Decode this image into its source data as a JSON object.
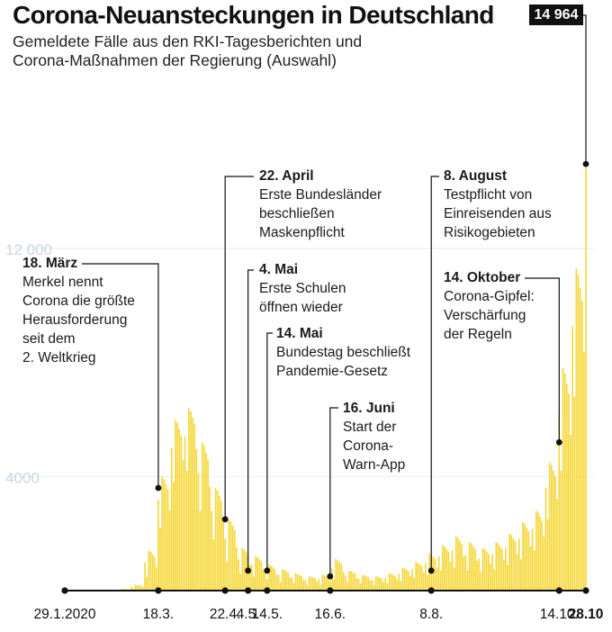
{
  "title": "Corona-Neuansteckungen in Deutschland",
  "subtitle_lines": [
    "Gemeldete Fälle aus den RKI-Tagesberichten und",
    "Corona-Maßnahmen der Regierung (Auswahl)"
  ],
  "peak_label": "14 964",
  "colors": {
    "bars": "#f5d73a",
    "gridline": "#e6eef3",
    "ytick_text": "#c7d6e0",
    "markers": "#111111"
  },
  "annotations": [
    {
      "date": "18. März",
      "text": "Merkel nennt\nCorona die größte\nHerausforderung\nseit dem\n2. Weltkrieg"
    },
    {
      "date": "22. April",
      "text": "Erste Bundesländer\nbeschließen\nMaskenpflicht"
    },
    {
      "date": "4. Mai",
      "text": "Erste Schulen\nöffnen wieder"
    },
    {
      "date": "14. Mai",
      "text": "Bundestag beschließt\nPandemie-Gesetz"
    },
    {
      "date": "16. Juni",
      "text": "Start der\nCorona-\nWarn-App"
    },
    {
      "date": "8. August",
      "text": "Testpflicht von\nEinreisenden aus\nRisikogebieten"
    },
    {
      "date": "14. Oktober",
      "text": "Corona-Gipfel:\nVerschärfung\nder Regeln"
    }
  ],
  "chart_data": {
    "type": "bar",
    "title": "Corona-Neuansteckungen in Deutschland",
    "subtitle": "Gemeldete Fälle aus den RKI-Tagesberichten und Corona-Maßnahmen der Regierung (Auswahl)",
    "x_range": [
      "2020-01-29",
      "2020-10-28"
    ],
    "ylim": [
      0,
      15000
    ],
    "y_ticks": [
      {
        "value": 4000,
        "label": "4000"
      },
      {
        "value": 12000,
        "label": "12 000"
      }
    ],
    "x_ticks": [
      {
        "date": "2020-01-29",
        "label": "29.1.2020"
      },
      {
        "date": "2020-03-18",
        "label": "18.3."
      },
      {
        "date": "2020-04-22",
        "label": "22.4."
      },
      {
        "date": "2020-05-04",
        "label": "4.5."
      },
      {
        "date": "2020-05-14",
        "label": "14.5."
      },
      {
        "date": "2020-06-16",
        "label": "16.6."
      },
      {
        "date": "2020-08-08",
        "label": "8.8."
      },
      {
        "date": "2020-10-14",
        "label": "14.10."
      },
      {
        "date": "2020-10-28",
        "label": "28.10"
      }
    ],
    "events": [
      {
        "date": "2020-03-18",
        "value": 3600
      },
      {
        "date": "2020-04-22",
        "value": 2500
      },
      {
        "date": "2020-05-04",
        "value": 700
      },
      {
        "date": "2020-05-14",
        "value": 700
      },
      {
        "date": "2020-06-16",
        "value": 500
      },
      {
        "date": "2020-08-08",
        "value": 700
      },
      {
        "date": "2020-10-14",
        "value": 5200
      },
      {
        "date": "2020-10-28",
        "value": 14964
      }
    ],
    "daily_cases_weekly_pattern": [
      {
        "week_start": "2020-01-29",
        "high": 0,
        "low": 0
      },
      {
        "week_start": "2020-02-05",
        "high": 0,
        "low": 0
      },
      {
        "week_start": "2020-02-12",
        "high": 0,
        "low": 0
      },
      {
        "week_start": "2020-02-19",
        "high": 10,
        "low": 0
      },
      {
        "week_start": "2020-02-26",
        "high": 60,
        "low": 20
      },
      {
        "week_start": "2020-03-04",
        "high": 200,
        "low": 80
      },
      {
        "week_start": "2020-03-11",
        "high": 1400,
        "low": 500
      },
      {
        "week_start": "2020-03-18",
        "high": 4000,
        "low": 2200
      },
      {
        "week_start": "2020-03-25",
        "high": 6000,
        "low": 3800
      },
      {
        "week_start": "2020-04-01",
        "high": 6400,
        "low": 4200
      },
      {
        "week_start": "2020-04-08",
        "high": 5200,
        "low": 2800
      },
      {
        "week_start": "2020-04-15",
        "high": 3600,
        "low": 1800
      },
      {
        "week_start": "2020-04-22",
        "high": 2500,
        "low": 1000
      },
      {
        "week_start": "2020-04-29",
        "high": 1500,
        "low": 600
      },
      {
        "week_start": "2020-05-06",
        "high": 1200,
        "low": 500
      },
      {
        "week_start": "2020-05-13",
        "high": 900,
        "low": 400
      },
      {
        "week_start": "2020-05-20",
        "high": 750,
        "low": 300
      },
      {
        "week_start": "2020-05-27",
        "high": 600,
        "low": 250
      },
      {
        "week_start": "2020-06-03",
        "high": 500,
        "low": 200
      },
      {
        "week_start": "2020-06-10",
        "high": 550,
        "low": 200
      },
      {
        "week_start": "2020-06-17",
        "high": 1100,
        "low": 400
      },
      {
        "week_start": "2020-06-24",
        "high": 700,
        "low": 300
      },
      {
        "week_start": "2020-07-01",
        "high": 550,
        "low": 250
      },
      {
        "week_start": "2020-07-08",
        "high": 500,
        "low": 200
      },
      {
        "week_start": "2020-07-15",
        "high": 600,
        "low": 250
      },
      {
        "week_start": "2020-07-22",
        "high": 800,
        "low": 350
      },
      {
        "week_start": "2020-07-29",
        "high": 1000,
        "low": 450
      },
      {
        "week_start": "2020-08-05",
        "high": 1300,
        "low": 550
      },
      {
        "week_start": "2020-08-12",
        "high": 1600,
        "low": 700
      },
      {
        "week_start": "2020-08-19",
        "high": 1900,
        "low": 800
      },
      {
        "week_start": "2020-08-26",
        "high": 1700,
        "low": 700
      },
      {
        "week_start": "2020-09-02",
        "high": 1500,
        "low": 650
      },
      {
        "week_start": "2020-09-09",
        "high": 1700,
        "low": 750
      },
      {
        "week_start": "2020-09-16",
        "high": 2000,
        "low": 900
      },
      {
        "week_start": "2020-09-23",
        "high": 2400,
        "low": 1100
      },
      {
        "week_start": "2020-09-30",
        "high": 2800,
        "low": 1400
      },
      {
        "week_start": "2020-10-07",
        "high": 4500,
        "low": 2500
      },
      {
        "week_start": "2020-10-14",
        "high": 7800,
        "low": 4200
      },
      {
        "week_start": "2020-10-21",
        "high": 11300,
        "low": 6800
      },
      {
        "week_start": "2020-10-28",
        "high": 14964,
        "low": 14964
      }
    ]
  }
}
